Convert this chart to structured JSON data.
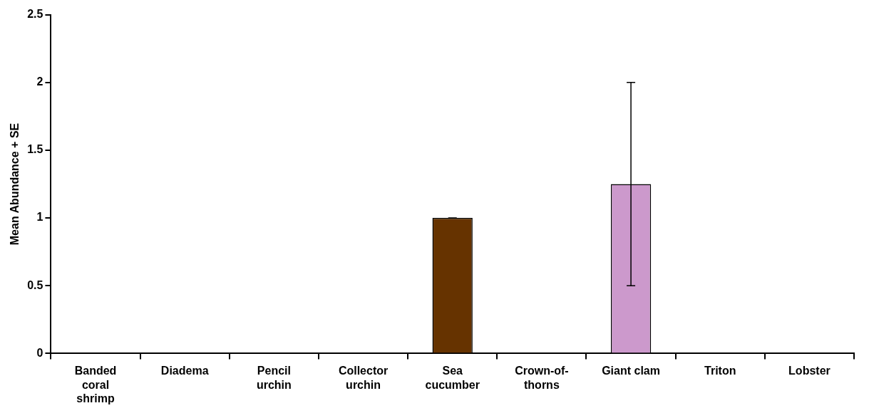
{
  "chart_data": {
    "type": "bar",
    "ylabel": "Mean Abundance + SE",
    "categories": [
      "Banded coral shrimp",
      "Diadema",
      "Pencil urchin",
      "Collector urchin",
      "Sea cucumber",
      "Crown-of-thorns",
      "Giant clam",
      "Triton",
      "Lobster"
    ],
    "values": [
      0,
      0,
      0,
      0,
      1,
      0,
      1.25,
      0,
      0
    ],
    "errors": [
      null,
      null,
      null,
      null,
      0,
      null,
      0.75,
      null,
      null
    ],
    "colors": [
      "#663300",
      "#663300",
      "#663300",
      "#663300",
      "#663300",
      "#cc99cc",
      "#cc99cc",
      "#cc99cc",
      "#cc99cc"
    ],
    "ylim": [
      0,
      2.5
    ],
    "yticks": [
      0,
      0.5,
      1,
      1.5,
      2,
      2.5
    ],
    "grid": false,
    "legend": false
  }
}
